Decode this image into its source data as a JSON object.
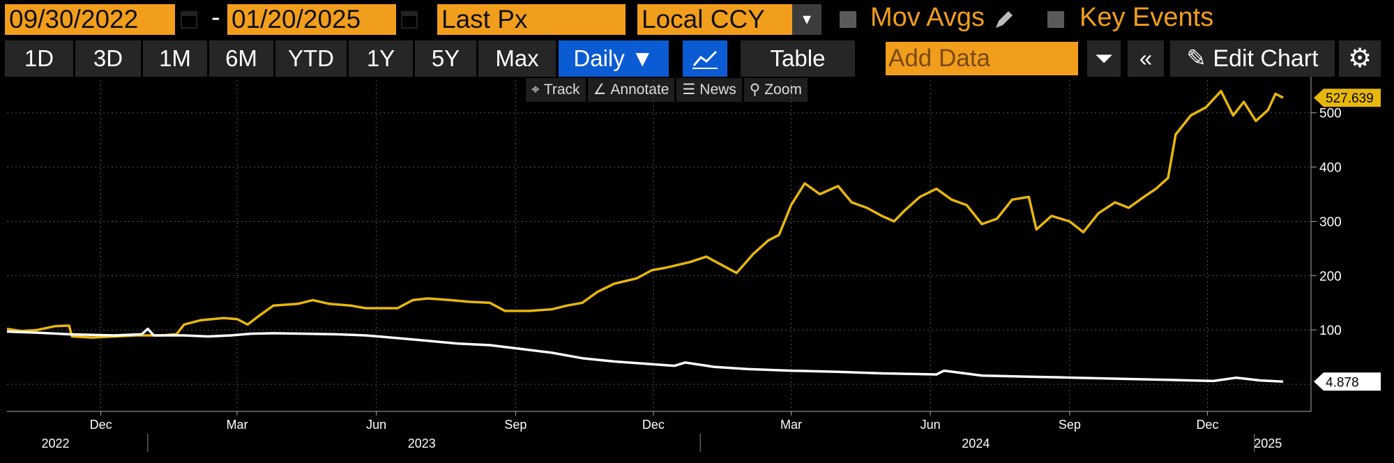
{
  "header": {
    "start_date": "09/30/2022",
    "end_date": "01/20/2025",
    "date_separator": "-",
    "field": "Last Px",
    "currency": "Local CCY",
    "mov_avgs": "Mov Avgs",
    "key_events": "Key Events"
  },
  "toolbar": {
    "ranges": [
      "1D",
      "3D",
      "1M",
      "6M",
      "YTD",
      "1Y",
      "5Y",
      "Max"
    ],
    "frequency": "Daily ▼",
    "table": "Table",
    "add_data_placeholder": "Add Data",
    "edit_chart": "Edit Chart"
  },
  "chart_tools": {
    "track": "Track",
    "annotate": "Annotate",
    "news": "News",
    "zoom": "Zoom"
  },
  "colors": {
    "background": "#000000",
    "orange": "#f29e1d",
    "series_gold": "#e8b70c",
    "series_white": "#ffffff",
    "selected": "#0b5bd3"
  },
  "chart_data": {
    "type": "line",
    "x_axis": {
      "month_ticks": [
        {
          "date": "2022-12-01",
          "label": "Dec"
        },
        {
          "date": "2023-03-01",
          "label": "Mar"
        },
        {
          "date": "2023-06-01",
          "label": "Jun"
        },
        {
          "date": "2023-09-01",
          "label": "Sep"
        },
        {
          "date": "2023-12-01",
          "label": "Dec"
        },
        {
          "date": "2024-03-01",
          "label": "Mar"
        },
        {
          "date": "2024-06-01",
          "label": "Jun"
        },
        {
          "date": "2024-09-01",
          "label": "Sep"
        },
        {
          "date": "2024-12-01",
          "label": "Dec"
        }
      ],
      "year_labels": [
        {
          "date": "2022-11-01",
          "label": "2022"
        },
        {
          "date": "2023-07-01",
          "label": "2023"
        },
        {
          "date": "2024-07-01",
          "label": "2024"
        },
        {
          "date": "2025-01-10",
          "label": "2025"
        }
      ],
      "range": [
        "2022-09-30",
        "2025-01-20"
      ]
    },
    "y_axis": {
      "ticks": [
        100,
        200,
        300,
        400,
        500
      ],
      "range": [
        -50,
        560
      ]
    },
    "grid": true,
    "series": [
      {
        "color": "#e8b70c",
        "last_value_label": "527.639",
        "points": [
          [
            "2022-09-30",
            102
          ],
          [
            "2022-10-10",
            98
          ],
          [
            "2022-10-20",
            100
          ],
          [
            "2022-11-01",
            107
          ],
          [
            "2022-11-10",
            108
          ],
          [
            "2022-11-12",
            88
          ],
          [
            "2022-11-25",
            86
          ],
          [
            "2022-12-10",
            88
          ],
          [
            "2022-12-25",
            90
          ],
          [
            "2023-01-10",
            90
          ],
          [
            "2023-01-20",
            92
          ],
          [
            "2023-01-25",
            110
          ],
          [
            "2023-02-05",
            118
          ],
          [
            "2023-02-20",
            122
          ],
          [
            "2023-03-01",
            120
          ],
          [
            "2023-03-08",
            110
          ],
          [
            "2023-03-15",
            125
          ],
          [
            "2023-03-25",
            145
          ],
          [
            "2023-04-10",
            148
          ],
          [
            "2023-04-20",
            155
          ],
          [
            "2023-05-01",
            148
          ],
          [
            "2023-05-15",
            145
          ],
          [
            "2023-05-25",
            140
          ],
          [
            "2023-06-05",
            140
          ],
          [
            "2023-06-15",
            140
          ],
          [
            "2023-06-25",
            155
          ],
          [
            "2023-07-05",
            158
          ],
          [
            "2023-07-20",
            155
          ],
          [
            "2023-08-01",
            152
          ],
          [
            "2023-08-15",
            150
          ],
          [
            "2023-08-25",
            135
          ],
          [
            "2023-09-10",
            135
          ],
          [
            "2023-09-25",
            138
          ],
          [
            "2023-10-05",
            145
          ],
          [
            "2023-10-15",
            150
          ],
          [
            "2023-10-25",
            170
          ],
          [
            "2023-11-05",
            185
          ],
          [
            "2023-11-20",
            195
          ],
          [
            "2023-11-30",
            210
          ],
          [
            "2023-12-10",
            215
          ],
          [
            "2023-12-25",
            225
          ],
          [
            "2024-01-05",
            235
          ],
          [
            "2024-01-15",
            220
          ],
          [
            "2024-01-25",
            205
          ],
          [
            "2024-02-05",
            240
          ],
          [
            "2024-02-15",
            265
          ],
          [
            "2024-02-22",
            275
          ],
          [
            "2024-03-01",
            330
          ],
          [
            "2024-03-10",
            370
          ],
          [
            "2024-03-20",
            350
          ],
          [
            "2024-04-01",
            365
          ],
          [
            "2024-04-10",
            335
          ],
          [
            "2024-04-20",
            325
          ],
          [
            "2024-04-30",
            310
          ],
          [
            "2024-05-08",
            300
          ],
          [
            "2024-05-15",
            320
          ],
          [
            "2024-05-25",
            345
          ],
          [
            "2024-06-05",
            360
          ],
          [
            "2024-06-15",
            340
          ],
          [
            "2024-06-25",
            330
          ],
          [
            "2024-07-05",
            295
          ],
          [
            "2024-07-15",
            305
          ],
          [
            "2024-07-25",
            340
          ],
          [
            "2024-08-05",
            345
          ],
          [
            "2024-08-10",
            285
          ],
          [
            "2024-08-20",
            310
          ],
          [
            "2024-09-01",
            300
          ],
          [
            "2024-09-10",
            280
          ],
          [
            "2024-09-20",
            315
          ],
          [
            "2024-10-01",
            335
          ],
          [
            "2024-10-10",
            325
          ],
          [
            "2024-10-20",
            345
          ],
          [
            "2024-10-28",
            360
          ],
          [
            "2024-11-05",
            380
          ],
          [
            "2024-11-10",
            460
          ],
          [
            "2024-11-20",
            495
          ],
          [
            "2024-11-30",
            510
          ],
          [
            "2024-12-10",
            540
          ],
          [
            "2024-12-18",
            495
          ],
          [
            "2024-12-25",
            520
          ],
          [
            "2025-01-02",
            485
          ],
          [
            "2025-01-10",
            505
          ],
          [
            "2025-01-15",
            535
          ],
          [
            "2025-01-20",
            527.639
          ]
        ]
      },
      {
        "color": "#ffffff",
        "last_value_label": "4.878",
        "points": [
          [
            "2022-09-30",
            97
          ],
          [
            "2022-10-20",
            95
          ],
          [
            "2022-11-10",
            92
          ],
          [
            "2022-12-10",
            90
          ],
          [
            "2022-12-28",
            92
          ],
          [
            "2023-01-01",
            102
          ],
          [
            "2023-01-05",
            90
          ],
          [
            "2023-01-25",
            90
          ],
          [
            "2023-02-10",
            88
          ],
          [
            "2023-02-25",
            90
          ],
          [
            "2023-03-10",
            93
          ],
          [
            "2023-03-25",
            94
          ],
          [
            "2023-04-15",
            93
          ],
          [
            "2023-05-05",
            92
          ],
          [
            "2023-05-25",
            90
          ],
          [
            "2023-06-15",
            85
          ],
          [
            "2023-07-05",
            80
          ],
          [
            "2023-07-25",
            75
          ],
          [
            "2023-08-15",
            72
          ],
          [
            "2023-09-05",
            65
          ],
          [
            "2023-09-25",
            58
          ],
          [
            "2023-10-15",
            48
          ],
          [
            "2023-11-05",
            42
          ],
          [
            "2023-11-25",
            38
          ],
          [
            "2023-12-15",
            34
          ],
          [
            "2023-12-22",
            40
          ],
          [
            "2024-01-10",
            32
          ],
          [
            "2024-02-01",
            28
          ],
          [
            "2024-03-01",
            25
          ],
          [
            "2024-04-01",
            23
          ],
          [
            "2024-05-01",
            20
          ],
          [
            "2024-06-05",
            18
          ],
          [
            "2024-06-10",
            25
          ],
          [
            "2024-07-05",
            16
          ],
          [
            "2024-08-05",
            14
          ],
          [
            "2024-09-05",
            12
          ],
          [
            "2024-10-05",
            10
          ],
          [
            "2024-11-05",
            8
          ],
          [
            "2024-12-05",
            6
          ],
          [
            "2024-12-20",
            12
          ],
          [
            "2025-01-05",
            7
          ],
          [
            "2025-01-20",
            4.878
          ]
        ]
      }
    ]
  }
}
